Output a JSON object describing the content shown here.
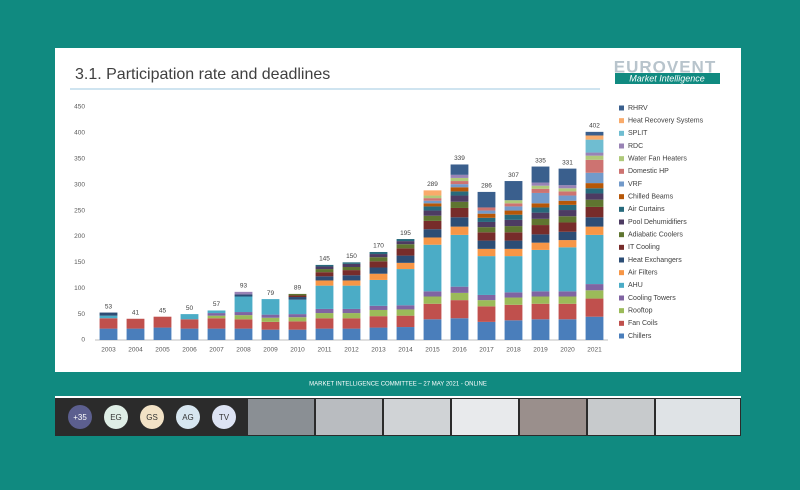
{
  "chart_data": {
    "type": "bar",
    "stacked": true,
    "title": "3.1. Participation rate and deadlines",
    "categories": [
      "2003",
      "2004",
      "2005",
      "2006",
      "2007",
      "2008",
      "2009",
      "2010",
      "2011",
      "2012",
      "2013",
      "2014",
      "2015",
      "2016",
      "2017",
      "2018",
      "2019",
      "2020",
      "2021"
    ],
    "totals": [
      53,
      41,
      45,
      50,
      57,
      93,
      79,
      89,
      145,
      150,
      170,
      195,
      289,
      339,
      286,
      307,
      335,
      331,
      402
    ],
    "ylim": [
      0,
      450
    ],
    "yticks": [
      0,
      50,
      100,
      150,
      200,
      250,
      300,
      350,
      400,
      450
    ],
    "grid": false,
    "legend": "right",
    "series": [
      {
        "name": "Chillers",
        "color": "#4a7ebb",
        "values": [
          22,
          22,
          24,
          22,
          22,
          22,
          20,
          20,
          22,
          22,
          24,
          25,
          40,
          42,
          35,
          38,
          40,
          40,
          45
        ]
      },
      {
        "name": "Fan Coils",
        "color": "#c0504d",
        "values": [
          20,
          19,
          21,
          18,
          20,
          18,
          15,
          16,
          20,
          20,
          22,
          22,
          30,
          35,
          30,
          30,
          30,
          30,
          35
        ]
      },
      {
        "name": "Rooftop",
        "color": "#9bbb59",
        "values": [
          0,
          0,
          0,
          0,
          5,
          8,
          8,
          8,
          10,
          10,
          12,
          12,
          14,
          14,
          12,
          14,
          14,
          14,
          16
        ]
      },
      {
        "name": "Cooling Towers",
        "color": "#8064a2",
        "values": [
          0,
          0,
          0,
          0,
          5,
          6,
          6,
          6,
          8,
          8,
          8,
          8,
          10,
          12,
          10,
          10,
          10,
          10,
          12
        ]
      },
      {
        "name": "AHU",
        "color": "#4bacc6",
        "values": [
          5,
          0,
          0,
          10,
          5,
          30,
          30,
          28,
          45,
          45,
          50,
          70,
          90,
          100,
          75,
          70,
          80,
          85,
          95
        ]
      },
      {
        "name": "Air Filters",
        "color": "#f79646",
        "values": [
          0,
          0,
          0,
          0,
          0,
          0,
          0,
          0,
          10,
          10,
          12,
          12,
          14,
          16,
          14,
          14,
          14,
          14,
          16
        ]
      },
      {
        "name": "Heat Exchangers",
        "color": "#2c4d75",
        "values": [
          6,
          0,
          0,
          0,
          0,
          4,
          0,
          5,
          8,
          10,
          12,
          14,
          16,
          18,
          16,
          16,
          16,
          16,
          18
        ]
      },
      {
        "name": "IT Cooling",
        "color": "#772c2a",
        "values": [
          0,
          0,
          0,
          0,
          0,
          0,
          0,
          3,
          8,
          10,
          12,
          14,
          16,
          18,
          16,
          16,
          18,
          18,
          20
        ]
      },
      {
        "name": "Adiabatic Coolers",
        "color": "#5f7530",
        "values": [
          0,
          0,
          0,
          0,
          0,
          0,
          0,
          3,
          6,
          6,
          8,
          8,
          10,
          12,
          10,
          12,
          12,
          12,
          14
        ]
      },
      {
        "name": "Pool Dehumidifiers",
        "color": "#4d3b62",
        "values": [
          0,
          0,
          0,
          0,
          0,
          0,
          0,
          0,
          5,
          6,
          6,
          6,
          10,
          12,
          10,
          12,
          12,
          12,
          12
        ]
      },
      {
        "name": "Air Curtains",
        "color": "#276a7c",
        "values": [
          0,
          0,
          0,
          0,
          0,
          0,
          0,
          0,
          3,
          3,
          4,
          4,
          8,
          8,
          8,
          10,
          10,
          10,
          10
        ]
      },
      {
        "name": "Chilled Beams",
        "color": "#b65708",
        "values": [
          0,
          0,
          0,
          0,
          0,
          0,
          0,
          0,
          0,
          0,
          0,
          0,
          6,
          8,
          8,
          8,
          8,
          8,
          10
        ]
      },
      {
        "name": "VRF",
        "color": "#729aca",
        "values": [
          0,
          0,
          0,
          0,
          0,
          0,
          0,
          0,
          0,
          0,
          0,
          0,
          5,
          6,
          6,
          8,
          20,
          10,
          20
        ]
      },
      {
        "name": "Domestic HP",
        "color": "#cd7371",
        "values": [
          0,
          0,
          0,
          0,
          0,
          0,
          0,
          0,
          0,
          0,
          0,
          0,
          5,
          6,
          6,
          6,
          8,
          8,
          25
        ]
      },
      {
        "name": "Water Fan Heaters",
        "color": "#afc97a",
        "values": [
          0,
          0,
          0,
          0,
          0,
          0,
          0,
          0,
          0,
          0,
          0,
          0,
          5,
          6,
          0,
          6,
          6,
          6,
          8
        ]
      },
      {
        "name": "RDC",
        "color": "#9983b5",
        "values": [
          0,
          0,
          0,
          0,
          0,
          5,
          0,
          0,
          0,
          0,
          0,
          0,
          0,
          6,
          0,
          0,
          6,
          6,
          6
        ]
      },
      {
        "name": "SPLIT",
        "color": "#6fbdd1",
        "values": [
          0,
          0,
          0,
          0,
          0,
          0,
          0,
          0,
          0,
          0,
          0,
          0,
          0,
          0,
          0,
          0,
          0,
          0,
          25
        ]
      },
      {
        "name": "Heat Recovery Systems",
        "color": "#f9ab6b",
        "values": [
          0,
          0,
          0,
          0,
          0,
          0,
          0,
          0,
          0,
          0,
          0,
          0,
          10,
          0,
          0,
          0,
          0,
          0,
          8
        ]
      },
      {
        "name": "RHRV",
        "color": "#3a5f8d",
        "values": [
          0,
          0,
          0,
          0,
          0,
          0,
          0,
          0,
          0,
          0,
          0,
          0,
          0,
          20,
          30,
          37,
          31,
          32,
          7
        ]
      }
    ]
  },
  "header": {
    "logo": "EUROVENT",
    "logo_subtitle": "Market Intelligence"
  },
  "footer": "MARKET INTELLIGENCE COMMITTEE – 27 MAY 2021 - ONLINE",
  "participants": [
    "+35",
    "EG",
    "GS",
    "AG",
    "TV"
  ]
}
